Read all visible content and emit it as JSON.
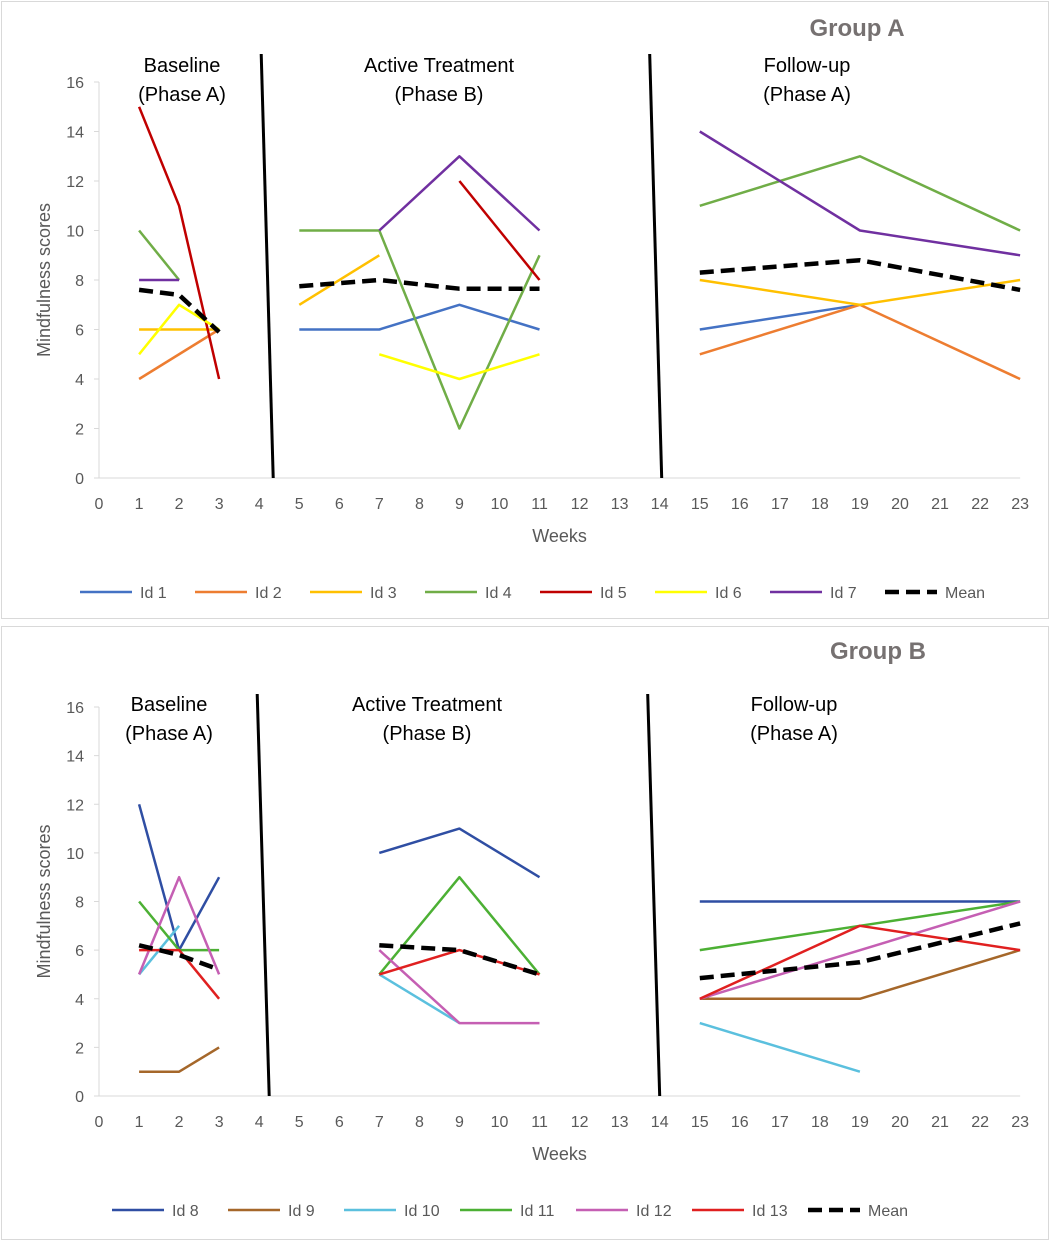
{
  "chart_data": [
    {
      "type": "line",
      "title": "Group A",
      "xlabel": "Weeks",
      "ylabel": "Mindfulness scores",
      "ylim": [
        0,
        16
      ],
      "yticks": [
        0,
        2,
        4,
        6,
        8,
        10,
        12,
        14,
        16
      ],
      "categories": [
        "0",
        "1",
        "2",
        "3",
        "4",
        "5",
        "6",
        "7",
        "8",
        "9",
        "10",
        "11",
        "12",
        "13",
        "14",
        "15",
        "16",
        "17",
        "18",
        "19",
        "20",
        "21",
        "22",
        "23"
      ],
      "phases": [
        {
          "line1": "Baseline",
          "line2": "(Phase A)"
        },
        {
          "line1": "Active Treatment",
          "line2": "(Phase B)"
        },
        {
          "line1": "Follow-up",
          "line2": "(Phase A)"
        }
      ],
      "phase_boundaries": [
        4.2,
        13.9
      ],
      "series": [
        {
          "name": "Id 1",
          "color": "#4472c4",
          "dashed": false,
          "segments": [
            [
              [
                5,
                6
              ],
              [
                7,
                6
              ],
              [
                9,
                7
              ],
              [
                11,
                6
              ]
            ],
            [
              [
                15,
                6
              ],
              [
                19,
                7
              ]
            ]
          ]
        },
        {
          "name": "Id 2",
          "color": "#ed7d31",
          "dashed": false,
          "segments": [
            [
              [
                1,
                4
              ],
              [
                3,
                6
              ]
            ],
            [
              [
                15,
                5
              ],
              [
                19,
                7
              ],
              [
                23,
                4
              ]
            ]
          ]
        },
        {
          "name": "Id 3",
          "color": "#ffc000",
          "dashed": false,
          "segments": [
            [
              [
                1,
                6
              ],
              [
                3,
                6
              ]
            ],
            [
              [
                5,
                7
              ],
              [
                7,
                9
              ]
            ],
            [
              [
                15,
                8
              ],
              [
                19,
                7
              ],
              [
                23,
                8
              ]
            ]
          ]
        },
        {
          "name": "Id 4",
          "color": "#70ad47",
          "dashed": false,
          "segments": [
            [
              [
                1,
                10
              ],
              [
                2,
                8
              ]
            ],
            [
              [
                5,
                10
              ],
              [
                7,
                10
              ],
              [
                9,
                2
              ],
              [
                11,
                9
              ]
            ],
            [
              [
                15,
                11
              ],
              [
                19,
                13
              ],
              [
                23,
                10
              ]
            ]
          ]
        },
        {
          "name": "Id 5",
          "color": "#c00000",
          "dashed": false,
          "segments": [
            [
              [
                1,
                15
              ],
              [
                2,
                11
              ],
              [
                3,
                4
              ]
            ],
            [
              [
                9,
                12
              ],
              [
                11,
                8
              ]
            ]
          ]
        },
        {
          "name": "Id 6",
          "color": "#ffff00",
          "dashed": false,
          "segments": [
            [
              [
                1,
                5
              ],
              [
                2,
                7
              ],
              [
                3,
                6
              ]
            ],
            [
              [
                7,
                5
              ],
              [
                9,
                4
              ],
              [
                11,
                5
              ]
            ]
          ]
        },
        {
          "name": "Id 7",
          "color": "#7030a0",
          "dashed": false,
          "segments": [
            [
              [
                1,
                8
              ],
              [
                2,
                8
              ]
            ],
            [
              [
                7,
                10
              ],
              [
                9,
                13
              ],
              [
                11,
                10
              ]
            ],
            [
              [
                15,
                14
              ],
              [
                19,
                10
              ],
              [
                23,
                9
              ]
            ]
          ]
        },
        {
          "name": "Mean",
          "color": "#000000",
          "dashed": true,
          "segments": [
            [
              [
                1,
                7.6
              ],
              [
                2,
                7.4
              ],
              [
                3,
                5.9
              ]
            ],
            [
              [
                5,
                7.75
              ],
              [
                7,
                8
              ],
              [
                9,
                7.65
              ],
              [
                11,
                7.65
              ]
            ],
            [
              [
                15,
                8.3
              ],
              [
                19,
                8.8
              ],
              [
                23,
                7.6
              ]
            ]
          ]
        }
      ]
    },
    {
      "type": "line",
      "title": "Group B",
      "xlabel": "Weeks",
      "ylabel": "Mindfulness scores",
      "ylim": [
        0,
        16
      ],
      "yticks": [
        0,
        2,
        4,
        6,
        8,
        10,
        12,
        14,
        16
      ],
      "categories": [
        "0",
        "1",
        "2",
        "3",
        "4",
        "5",
        "6",
        "7",
        "8",
        "9",
        "10",
        "11",
        "12",
        "13",
        "14",
        "15",
        "16",
        "17",
        "18",
        "19",
        "20",
        "21",
        "22",
        "23"
      ],
      "phases": [
        {
          "line1": "Baseline",
          "line2": "(Phase A)"
        },
        {
          "line1": "Active Treatment",
          "line2": "(Phase B)"
        },
        {
          "line1": "Follow-up",
          "line2": "(Phase A)"
        }
      ],
      "phase_boundaries": [
        4.1,
        13.85
      ],
      "series": [
        {
          "name": "Id 8",
          "color": "#2f4ea3",
          "dashed": false,
          "segments": [
            [
              [
                1,
                12
              ],
              [
                2,
                6
              ],
              [
                3,
                9
              ]
            ],
            [
              [
                7,
                10
              ],
              [
                9,
                11
              ],
              [
                11,
                9
              ]
            ],
            [
              [
                15,
                8
              ],
              [
                23,
                8
              ]
            ]
          ]
        },
        {
          "name": "Id 9",
          "color": "#a5672a",
          "dashed": false,
          "segments": [
            [
              [
                1,
                1
              ],
              [
                2,
                1
              ],
              [
                3,
                2
              ]
            ],
            [
              [
                15,
                4
              ],
              [
                19,
                4
              ],
              [
                23,
                6
              ]
            ]
          ]
        },
        {
          "name": "Id 10",
          "color": "#5bc0de",
          "dashed": false,
          "segments": [
            [
              [
                1,
                5
              ],
              [
                2,
                7
              ]
            ],
            [
              [
                7,
                5
              ],
              [
                9,
                3
              ]
            ],
            [
              [
                15,
                3
              ],
              [
                19,
                1
              ]
            ]
          ]
        },
        {
          "name": "Id 11",
          "color": "#4cb034",
          "dashed": false,
          "segments": [
            [
              [
                1,
                8
              ],
              [
                2,
                6
              ],
              [
                3,
                6
              ]
            ],
            [
              [
                7,
                5
              ],
              [
                9,
                9
              ],
              [
                11,
                5
              ]
            ],
            [
              [
                15,
                6
              ],
              [
                19,
                7
              ],
              [
                23,
                8
              ]
            ]
          ]
        },
        {
          "name": "Id 12",
          "color": "#c55fb3",
          "dashed": false,
          "segments": [
            [
              [
                1,
                5
              ],
              [
                2,
                9
              ],
              [
                3,
                5
              ]
            ],
            [
              [
                7,
                6
              ],
              [
                9,
                3
              ],
              [
                11,
                3
              ]
            ],
            [
              [
                15,
                4
              ],
              [
                23,
                8
              ]
            ]
          ]
        },
        {
          "name": "Id 13",
          "color": "#e02020",
          "dashed": false,
          "segments": [
            [
              [
                1,
                6
              ],
              [
                2,
                6
              ],
              [
                3,
                4
              ]
            ],
            [
              [
                7,
                5
              ],
              [
                9,
                6
              ],
              [
                11,
                5
              ]
            ],
            [
              [
                15,
                4
              ],
              [
                19,
                7
              ],
              [
                23,
                6
              ]
            ]
          ]
        },
        {
          "name": "Mean",
          "color": "#000000",
          "dashed": true,
          "segments": [
            [
              [
                1,
                6.2
              ],
              [
                2,
                5.8
              ],
              [
                3,
                5.2
              ]
            ],
            [
              [
                7,
                6.2
              ],
              [
                9,
                6
              ],
              [
                11,
                5
              ]
            ],
            [
              [
                15,
                4.85
              ],
              [
                19,
                5.5
              ],
              [
                23,
                7.1
              ]
            ]
          ]
        }
      ]
    }
  ]
}
